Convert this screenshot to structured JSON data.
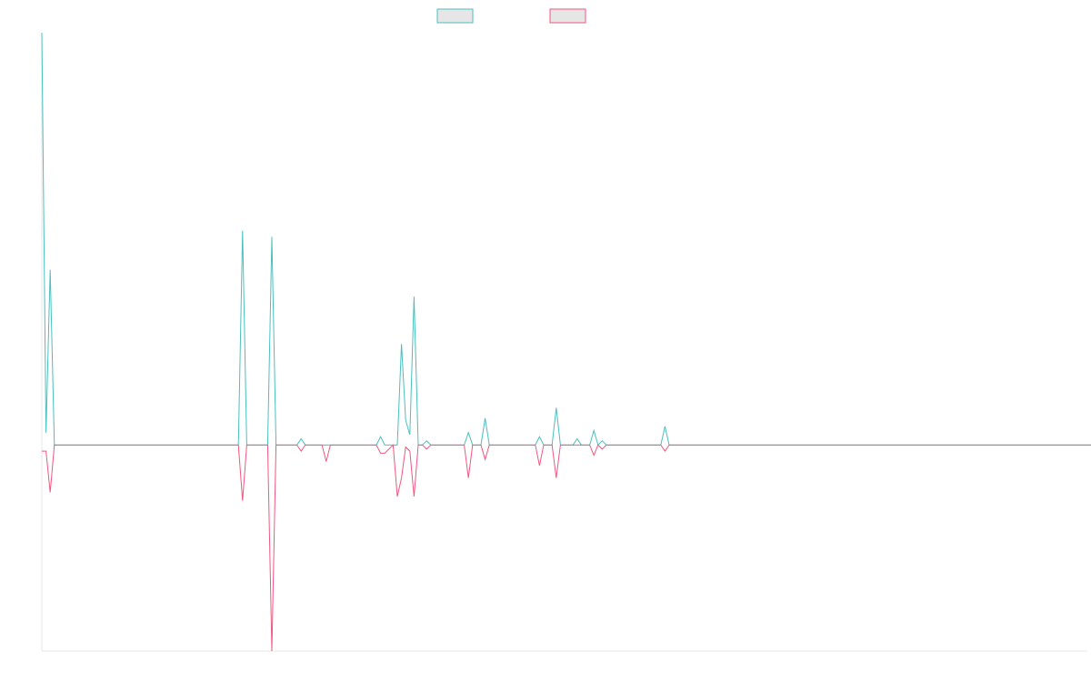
{
  "chart_data": {
    "type": "line",
    "title": "",
    "xlabel": "",
    "ylabel": "",
    "legend": {
      "position": "top-center",
      "swatch_fill": "#e6e6e6"
    },
    "grid": false,
    "x_count": 251,
    "ylim": [
      -100,
      200
    ],
    "series": [
      {
        "color": "#4bbfbf",
        "points": [
          [
            0,
            200
          ],
          [
            1,
            6
          ],
          [
            2,
            85
          ],
          [
            3,
            0
          ],
          [
            4,
            0
          ],
          [
            47,
            0
          ],
          [
            48,
            104
          ],
          [
            49,
            0
          ],
          [
            54,
            0
          ],
          [
            55,
            101
          ],
          [
            56,
            0
          ],
          [
            61,
            0
          ],
          [
            62,
            3
          ],
          [
            63,
            0
          ],
          [
            67,
            0
          ],
          [
            68,
            0
          ],
          [
            69,
            0
          ],
          [
            80,
            0
          ],
          [
            81,
            4
          ],
          [
            82,
            0
          ],
          [
            85,
            0
          ],
          [
            86,
            49
          ],
          [
            87,
            12
          ],
          [
            88,
            5
          ],
          [
            89,
            72
          ],
          [
            90,
            0
          ],
          [
            91,
            0
          ],
          [
            92,
            2
          ],
          [
            93,
            0
          ],
          [
            101,
            0
          ],
          [
            102,
            6
          ],
          [
            103,
            0
          ],
          [
            105,
            0
          ],
          [
            106,
            13
          ],
          [
            107,
            0
          ],
          [
            118,
            0
          ],
          [
            119,
            4
          ],
          [
            120,
            0
          ],
          [
            122,
            0
          ],
          [
            123,
            18
          ],
          [
            124,
            0
          ],
          [
            127,
            0
          ],
          [
            128,
            3
          ],
          [
            129,
            0
          ],
          [
            131,
            0
          ],
          [
            132,
            7
          ],
          [
            133,
            0
          ],
          [
            134,
            2
          ],
          [
            135,
            0
          ],
          [
            148,
            0
          ],
          [
            149,
            9
          ],
          [
            150,
            0
          ],
          [
            251,
            0
          ]
        ]
      },
      {
        "color": "#f0577f",
        "points": [
          [
            0,
            -3
          ],
          [
            1,
            -3
          ],
          [
            2,
            -23
          ],
          [
            3,
            0
          ],
          [
            4,
            0
          ],
          [
            47,
            0
          ],
          [
            48,
            -27
          ],
          [
            49,
            0
          ],
          [
            54,
            0
          ],
          [
            55,
            -100
          ],
          [
            56,
            0
          ],
          [
            61,
            0
          ],
          [
            62,
            -3
          ],
          [
            63,
            0
          ],
          [
            67,
            0
          ],
          [
            68,
            -8
          ],
          [
            69,
            0
          ],
          [
            80,
            0
          ],
          [
            81,
            -4
          ],
          [
            82,
            -4
          ],
          [
            84,
            0
          ],
          [
            85,
            -25
          ],
          [
            86,
            -16
          ],
          [
            87,
            -1
          ],
          [
            88,
            -3
          ],
          [
            89,
            -25
          ],
          [
            90,
            0
          ],
          [
            91,
            0
          ],
          [
            92,
            -2
          ],
          [
            93,
            0
          ],
          [
            101,
            0
          ],
          [
            102,
            -16
          ],
          [
            103,
            0
          ],
          [
            105,
            0
          ],
          [
            106,
            -7
          ],
          [
            107,
            0
          ],
          [
            118,
            0
          ],
          [
            119,
            -10
          ],
          [
            120,
            0
          ],
          [
            122,
            0
          ],
          [
            123,
            -16
          ],
          [
            124,
            0
          ],
          [
            127,
            0
          ],
          [
            128,
            0
          ],
          [
            129,
            0
          ],
          [
            131,
            0
          ],
          [
            132,
            -5
          ],
          [
            133,
            0
          ],
          [
            134,
            -2
          ],
          [
            135,
            0
          ],
          [
            148,
            0
          ],
          [
            149,
            -3
          ],
          [
            150,
            0
          ],
          [
            251,
            0
          ]
        ]
      }
    ]
  }
}
